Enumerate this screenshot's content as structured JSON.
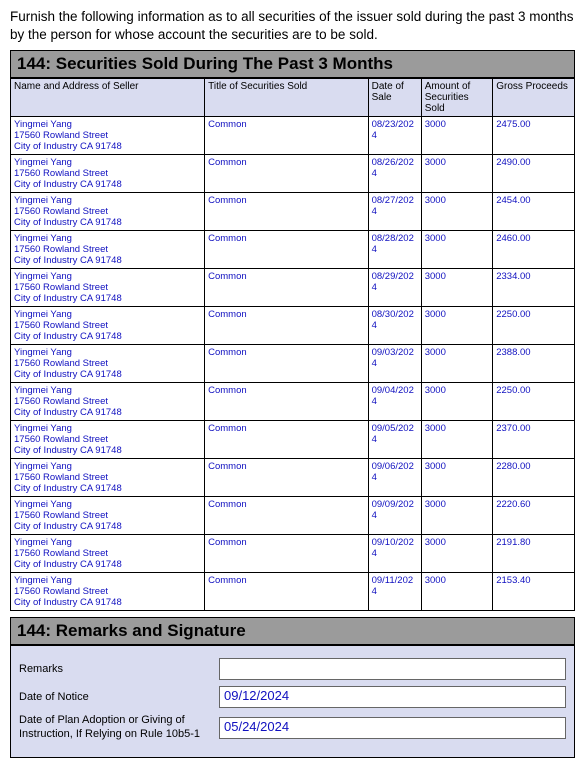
{
  "intro": "Furnish the following information as to all securities of the issuer sold during the past 3 months by the person for whose account the securities are to be sold.",
  "section1_title": "144: Securities Sold During The Past 3 Months",
  "section2_title": "144: Remarks and Signature",
  "table": {
    "columns": [
      "Name and Address of Seller",
      "Title of Securities Sold",
      "Date of Sale",
      "Amount of Securities Sold",
      "Gross Proceeds"
    ],
    "col_widths": [
      "190px",
      "160px",
      "52px",
      "70px",
      "80px"
    ],
    "header_bg": "#d9dcf0",
    "cell_color": "#1010c0",
    "rows": [
      {
        "seller": [
          "Yingmei Yang",
          "17560 Rowland Street",
          "City of Industry   CA   91748"
        ],
        "title": "Common",
        "date": "08/23/2024",
        "amount": "3000",
        "proceeds": "2475.00"
      },
      {
        "seller": [
          "Yingmei Yang",
          "17560 Rowland Street",
          "City of Industry   CA   91748"
        ],
        "title": "Common",
        "date": "08/26/2024",
        "amount": "3000",
        "proceeds": "2490.00"
      },
      {
        "seller": [
          "Yingmei Yang",
          "17560 Rowland Street",
          "City of Industry   CA   91748"
        ],
        "title": "Common",
        "date": "08/27/2024",
        "amount": "3000",
        "proceeds": "2454.00"
      },
      {
        "seller": [
          "Yingmei Yang",
          "17560 Rowland Street",
          "City of Industry   CA   91748"
        ],
        "title": "Common",
        "date": "08/28/2024",
        "amount": "3000",
        "proceeds": "2460.00"
      },
      {
        "seller": [
          "Yingmei Yang",
          "17560 Rowland Street",
          "City of Industry   CA   91748"
        ],
        "title": "Common",
        "date": "08/29/2024",
        "amount": "3000",
        "proceeds": "2334.00"
      },
      {
        "seller": [
          "Yingmei Yang",
          "17560 Rowland Street",
          "City of Industry   CA   91748"
        ],
        "title": "Common",
        "date": "08/30/2024",
        "amount": "3000",
        "proceeds": "2250.00"
      },
      {
        "seller": [
          "Yingmei Yang",
          "17560 Rowland Street",
          "City of Industry   CA   91748"
        ],
        "title": "Common",
        "date": "09/03/2024",
        "amount": "3000",
        "proceeds": "2388.00"
      },
      {
        "seller": [
          "Yingmei Yang",
          "17560 Rowland Street",
          "City of Industry   CA   91748"
        ],
        "title": "Common",
        "date": "09/04/2024",
        "amount": "3000",
        "proceeds": "2250.00"
      },
      {
        "seller": [
          "Yingmei Yang",
          "17560 Rowland Street",
          "City of Industry   CA   91748"
        ],
        "title": "Common",
        "date": "09/05/2024",
        "amount": "3000",
        "proceeds": "2370.00"
      },
      {
        "seller": [
          "Yingmei Yang",
          "17560 Rowland Street",
          "City of Industry   CA   91748"
        ],
        "title": "Common",
        "date": "09/06/2024",
        "amount": "3000",
        "proceeds": "2280.00"
      },
      {
        "seller": [
          "Yingmei Yang",
          "17560 Rowland Street",
          "City of Industry   CA   91748"
        ],
        "title": "Common",
        "date": "09/09/2024",
        "amount": "3000",
        "proceeds": "2220.60"
      },
      {
        "seller": [
          "Yingmei Yang",
          "17560 Rowland Street",
          "City of Industry   CA   91748"
        ],
        "title": "Common",
        "date": "09/10/2024",
        "amount": "3000",
        "proceeds": "2191.80"
      },
      {
        "seller": [
          "Yingmei Yang",
          "17560 Rowland Street",
          "City of Industry   CA   91748"
        ],
        "title": "Common",
        "date": "09/11/2024",
        "amount": "3000",
        "proceeds": "2153.40"
      }
    ]
  },
  "remarks": {
    "label_remarks": "Remarks",
    "value_remarks": "",
    "label_notice": "Date of Notice",
    "value_notice": "09/12/2024",
    "label_plan": "Date of Plan Adoption or Giving of Instruction, If Relying on Rule 10b5-1",
    "value_plan": "05/24/2024"
  }
}
